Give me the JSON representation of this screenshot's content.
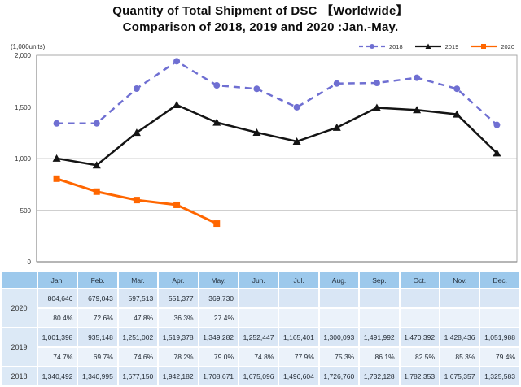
{
  "title": {
    "line1": "Quantity of Total Shipment of DSC 【Worldwide】",
    "line2": "Comparison of 2018, 2019 and 2020 :Jan.-May."
  },
  "axis": {
    "unit_label": "(1,000units)",
    "tick_labels": [
      "2,000",
      "1,500",
      "1,000",
      "500",
      "0"
    ],
    "tick_values": [
      2000,
      1500,
      1000,
      500,
      0
    ]
  },
  "legend": [
    {
      "label": "2018",
      "marker": "circle",
      "dashed": true
    },
    {
      "label": "2019",
      "marker": "triangle",
      "dashed": false
    },
    {
      "label": "2020",
      "marker": "square",
      "dashed": false
    }
  ],
  "colors": {
    "accent_2018": "#6F6FD2",
    "accent_2019": "#141414",
    "accent_2020": "#FF6600",
    "grid_line": "#CFCFCF",
    "plot_border": "#A9A9A9",
    "table_header_bg": "#9DC9EC",
    "table_value_bg": "#D9E6F5",
    "table_pct_bg": "#EBF2FA",
    "table_label_bg": "#DCE9F6"
  },
  "chart_data": {
    "type": "line",
    "title": "Quantity of Total Shipment of DSC [Worldwide] Comparison of 2018, 2019 and 2020 :Jan.-May.",
    "xlabel": "",
    "ylabel": "(1,000units)",
    "ylim": [
      0,
      2000
    ],
    "grid": true,
    "legend_position": "top-right",
    "categories": [
      "Jan.",
      "Feb.",
      "Mar.",
      "Apr.",
      "May.",
      "Jun.",
      "Jul.",
      "Aug.",
      "Sep.",
      "Oct.",
      "Nov.",
      "Dec."
    ],
    "series": [
      {
        "name": "2018",
        "marker": "circle",
        "style": "dashed",
        "color_key": "accent_2018",
        "values": [
          1340.492,
          1340.995,
          1677.15,
          1942.182,
          1708.671,
          1675.096,
          1496.604,
          1726.76,
          1732.128,
          1782.353,
          1675.357,
          1325.583
        ]
      },
      {
        "name": "2019",
        "marker": "triangle",
        "style": "solid",
        "color_key": "accent_2019",
        "values": [
          1001.398,
          935.148,
          1251.002,
          1519.378,
          1349.282,
          1252.447,
          1165.401,
          1300.093,
          1491.992,
          1470.392,
          1428.436,
          1051.988
        ]
      },
      {
        "name": "2020",
        "marker": "square",
        "style": "solid",
        "color_key": "accent_2020",
        "values": [
          804.646,
          679.043,
          597.513,
          551.377,
          369.73
        ]
      }
    ]
  },
  "table": {
    "columns": [
      "",
      "Jan.",
      "Feb.",
      "Mar.",
      "Apr.",
      "May.",
      "Jun.",
      "Jul.",
      "Aug.",
      "Sep.",
      "Oct.",
      "Nov.",
      "Dec."
    ],
    "rows": [
      {
        "year": "2020",
        "values": [
          "804,646",
          "679,043",
          "597,513",
          "551,377",
          "369,730",
          "",
          "",
          "",
          "",
          "",
          "",
          ""
        ],
        "pct": [
          "80.4%",
          "72.6%",
          "47.8%",
          "36.3%",
          "27.4%",
          "",
          "",
          "",
          "",
          "",
          "",
          ""
        ]
      },
      {
        "year": "2019",
        "values": [
          "1,001,398",
          "935,148",
          "1,251,002",
          "1,519,378",
          "1,349,282",
          "1,252,447",
          "1,165,401",
          "1,300,093",
          "1,491,992",
          "1,470,392",
          "1,428,436",
          "1,051,988"
        ],
        "pct": [
          "74.7%",
          "69.7%",
          "74.6%",
          "78.2%",
          "79.0%",
          "74.8%",
          "77.9%",
          "75.3%",
          "86.1%",
          "82.5%",
          "85.3%",
          "79.4%"
        ]
      },
      {
        "year": "2018",
        "values": [
          "1,340,492",
          "1,340,995",
          "1,677,150",
          "1,942,182",
          "1,708,671",
          "1,675,096",
          "1,496,604",
          "1,726,760",
          "1,732,128",
          "1,782,353",
          "1,675,357",
          "1,325,583"
        ],
        "pct": null
      }
    ]
  }
}
